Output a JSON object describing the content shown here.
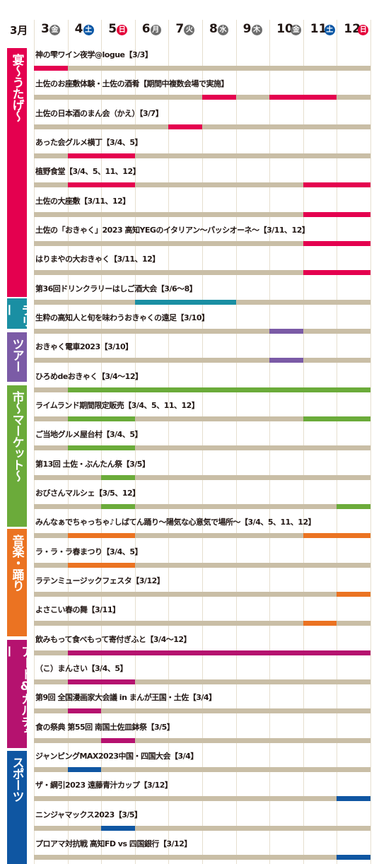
{
  "header": {
    "month": "3月",
    "days": [
      {
        "day": 3,
        "weekday": "金",
        "color": "#6d6d6d"
      },
      {
        "day": 4,
        "weekday": "土",
        "color": "#0b58a6"
      },
      {
        "day": 5,
        "weekday": "日",
        "color": "#e4003a"
      },
      {
        "day": 6,
        "weekday": "月",
        "color": "#6d6d6d"
      },
      {
        "day": 7,
        "weekday": "火",
        "color": "#6d6d6d"
      },
      {
        "day": 8,
        "weekday": "水",
        "color": "#6d6d6d"
      },
      {
        "day": 9,
        "weekday": "木",
        "color": "#6d6d6d"
      },
      {
        "day": 10,
        "weekday": "金",
        "color": "#6d6d6d"
      },
      {
        "day": 11,
        "weekday": "土",
        "color": "#0b58a6"
      },
      {
        "day": 12,
        "weekday": "日",
        "color": "#e4003a"
      }
    ]
  },
  "groups": [
    {
      "name": "宴～うたげ～",
      "color": "#e4004f",
      "events": [
        {
          "label": "神の雫ワイン夜学@logue【3/3】",
          "days": [
            3
          ]
        },
        {
          "label": "土佐のお座敷体験・土佐の酒肴【期間中複数会場で実施】",
          "days": [
            8,
            10,
            11
          ]
        },
        {
          "label": "土佐の日本酒のまん会（かえ）【3/7】",
          "days": [
            7
          ]
        },
        {
          "label": "あった会グルメ横丁【3/4、5】",
          "days": [
            4,
            5
          ]
        },
        {
          "label": "植野食堂【3/4、5、11、12】",
          "days": [
            4,
            5,
            11,
            12
          ]
        },
        {
          "label": "土佐の大座敷【3/11、12】",
          "days": [
            11,
            12
          ]
        },
        {
          "label": "土佐の「おきゃく」2023 高知YEGのイタリアン～パッシオーネ～【3/11、12】",
          "days": [
            11,
            12
          ]
        },
        {
          "label": "はりまやの大おきゃく【3/11、12】",
          "days": [
            11,
            12
          ]
        }
      ]
    },
    {
      "name": "ラリー",
      "color": "#1a8fa3",
      "events": [
        {
          "label": "第36回ドリンクラリーはしご酒大会【3/6～8】",
          "days": [
            6,
            7,
            8
          ]
        }
      ]
    },
    {
      "name": "ツアー",
      "color": "#7b5ba6",
      "events": [
        {
          "label": "生粋の高知人と旬を味わうおきゃくの遠足【3/10】",
          "days": [
            10
          ]
        },
        {
          "label": "おきゃく電車2023【3/10】",
          "days": [
            10
          ]
        }
      ]
    },
    {
      "name": "市～マーケット～",
      "color": "#6bab3a",
      "events": [
        {
          "label": "ひろめdeおきゃく【3/4～12】",
          "days": [
            4,
            5,
            6,
            7,
            8,
            9,
            10,
            11,
            12
          ]
        },
        {
          "label": "ライムランド期間限定販売【3/4、5、11、12】",
          "days": [
            4,
            5,
            11,
            12
          ]
        },
        {
          "label": "ご当地グルメ屋台村【3/4、5】",
          "days": [
            4,
            5
          ]
        },
        {
          "label": "第13回 土佐・ぶんたん祭【3/5】",
          "days": [
            5
          ]
        },
        {
          "label": "おびさんマルシェ【3/5、12】",
          "days": [
            5,
            12
          ]
        }
      ]
    },
    {
      "name": "音楽・踊り",
      "color": "#eb7322",
      "events": [
        {
          "label": "みんなぁでちゃっちゃ♪しばてん踊り～陽気な心意気で場所～【3/4、5、11、12】",
          "days": [
            4,
            5,
            11,
            12
          ]
        },
        {
          "label": "ラ・ラ・ラ春まつり【3/4、5】",
          "days": [
            4,
            5
          ]
        },
        {
          "label": "ラテンミュージックフェスタ【3/12】",
          "days": [
            12
          ]
        },
        {
          "label": "よさこい春の舞【3/11】",
          "days": [
            11
          ]
        }
      ]
    },
    {
      "name": "アート&カルチャー",
      "color": "#b5126f",
      "events": [
        {
          "label": "飲みもって食べもって寄付ぎふと【3/4～12】",
          "days": [
            4,
            5,
            6,
            7,
            8,
            9,
            10,
            11,
            12
          ]
        },
        {
          "label": "（こ）まんさい【3/4、5】",
          "days": [
            4,
            5
          ]
        },
        {
          "label": "第9回 全国漫画家大会議 in まんが王国・土佐【3/4】",
          "days": [
            4
          ]
        },
        {
          "label": "食の祭典 第55回 南国土佐皿鉢祭【3/5】",
          "days": [
            5
          ]
        }
      ]
    },
    {
      "name": "スポーツ",
      "color": "#0f56a2",
      "events": [
        {
          "label": "ジャンピングMAX2023中国・四国大会【3/4】",
          "days": [
            4
          ]
        },
        {
          "label": "ザ・綱引2023 遠藤青汁カップ【3/12】",
          "days": [
            12
          ]
        },
        {
          "label": "ニンジャマックス2023【3/5】",
          "days": [
            5
          ]
        },
        {
          "label": "プロアマ対抗戦 高知FD vs 四国銀行【3/12】",
          "days": [
            12
          ]
        }
      ]
    }
  ]
}
